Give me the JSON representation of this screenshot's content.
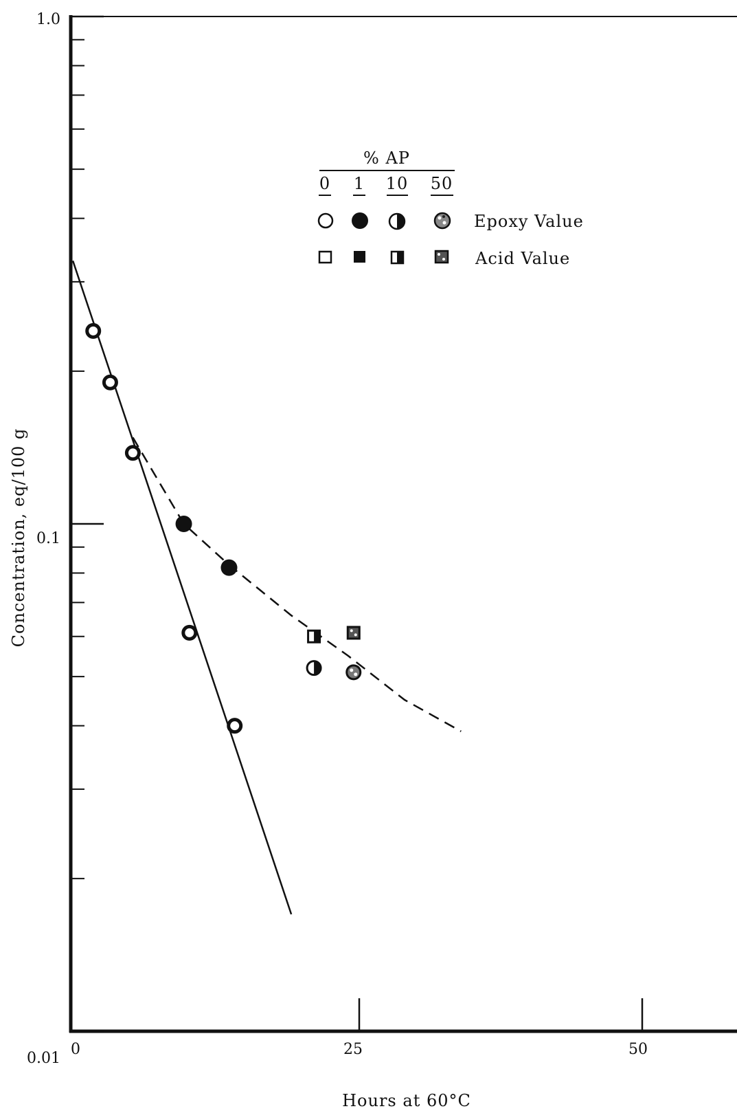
{
  "chart_data": {
    "type": "scatter",
    "title": "",
    "xlabel": "Hours at 60°C",
    "ylabel": "Concentration, eq/100 g",
    "xlim": [
      0,
      60
    ],
    "ylim": [
      0.01,
      1.0
    ],
    "yscale": "log",
    "x_ticks": [
      {
        "value": 0,
        "label": "0"
      },
      {
        "value": 25,
        "label": "25"
      },
      {
        "value": 50,
        "label": "50"
      }
    ],
    "y_ticks": [
      {
        "value": 1.0,
        "label": "1.0"
      },
      {
        "value": 0.1,
        "label": "0.1"
      },
      {
        "value": 0.01,
        "label": "0.01"
      }
    ],
    "grid": false,
    "legend": {
      "placement": "top-center",
      "header": "% AP",
      "columns": [
        "0",
        "1",
        "10",
        "50"
      ],
      "rows": [
        "Epoxy Value",
        "Acid Value"
      ]
    },
    "series": [
      {
        "name": "0",
        "marker": "open",
        "measure": "Epoxy Value",
        "points": [
          [
            1.5,
            0.24
          ],
          [
            3,
            0.19
          ],
          [
            5,
            0.138
          ],
          [
            10,
            0.061
          ],
          [
            14,
            0.04
          ]
        ]
      },
      {
        "name": "1",
        "marker": "filled",
        "measure": "Epoxy Value",
        "points": [
          [
            9.5,
            0.1
          ],
          [
            13.5,
            0.082
          ]
        ]
      },
      {
        "name": "10",
        "marker": "half",
        "measure": "Epoxy Value",
        "points": [
          [
            21,
            0.052
          ]
        ]
      },
      {
        "name": "50",
        "marker": "speckled",
        "measure": "Epoxy Value",
        "points": [
          [
            24.5,
            0.051
          ]
        ]
      },
      {
        "name": "10",
        "marker": "half",
        "measure": "Acid Value",
        "points": [
          [
            21,
            0.06
          ]
        ]
      },
      {
        "name": "50",
        "marker": "speckled",
        "measure": "Acid Value",
        "points": [
          [
            24.5,
            0.061
          ]
        ]
      }
    ],
    "fit_lines": [
      {
        "style": "solid",
        "points": [
          [
            -0.3,
            0.33
          ],
          [
            19,
            0.017
          ]
        ]
      },
      {
        "style": "dashed",
        "points": [
          [
            5,
            0.148
          ],
          [
            9.5,
            0.1
          ],
          [
            13.5,
            0.083
          ],
          [
            19,
            0.066
          ],
          [
            24,
            0.055
          ],
          [
            29,
            0.045
          ],
          [
            34,
            0.039
          ]
        ]
      }
    ]
  }
}
